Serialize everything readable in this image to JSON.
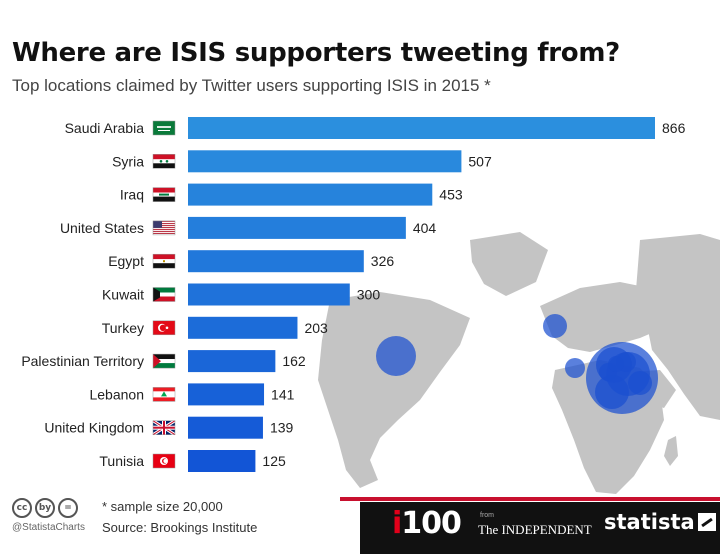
{
  "title": "Where are ISIS supporters tweeting from?",
  "subtitle": "Top locations claimed by Twitter users supporting ISIS in 2015 *",
  "chart_data": {
    "type": "bar",
    "orientation": "horizontal",
    "title": "Where are ISIS supporters tweeting from?",
    "subtitle": "Top locations claimed by Twitter users supporting ISIS in 2015 *",
    "categories": [
      "Saudi Arabia",
      "Syria",
      "Iraq",
      "United States",
      "Egypt",
      "Kuwait",
      "Turkey",
      "Palestinian Territory",
      "Lebanon",
      "United Kingdom",
      "Tunisia"
    ],
    "values": [
      866,
      507,
      453,
      404,
      326,
      300,
      203,
      162,
      141,
      139,
      125
    ],
    "flags": [
      "saudi-arabia-flag-icon",
      "syria-flag-icon",
      "iraq-flag-icon",
      "united-states-flag-icon",
      "egypt-flag-icon",
      "kuwait-flag-icon",
      "turkey-flag-icon",
      "palestine-flag-icon",
      "lebanon-flag-icon",
      "united-kingdom-flag-icon",
      "tunisia-flag-icon"
    ],
    "xlim": [
      0,
      866
    ],
    "grid": false,
    "bar_color_start": "#2b8fde",
    "bar_color_end": "#1255d6",
    "background_map": "world-map-with-bubbles"
  },
  "footer": {
    "note": "* sample size 20,000",
    "source": "Source: Brookings Institute",
    "handle": "@StatistaCharts",
    "cc_icons": [
      "cc",
      "by",
      "="
    ],
    "partner_logo_i": "i",
    "partner_logo_100": "100",
    "partner_from": "from",
    "partner_name": "The INDEPENDENT",
    "brand": "statista"
  },
  "colors": {
    "map": "#c4c4c4",
    "bubble": "#1a4fd0",
    "accent_red": "#c8102e",
    "footer_dark": "#111111"
  }
}
